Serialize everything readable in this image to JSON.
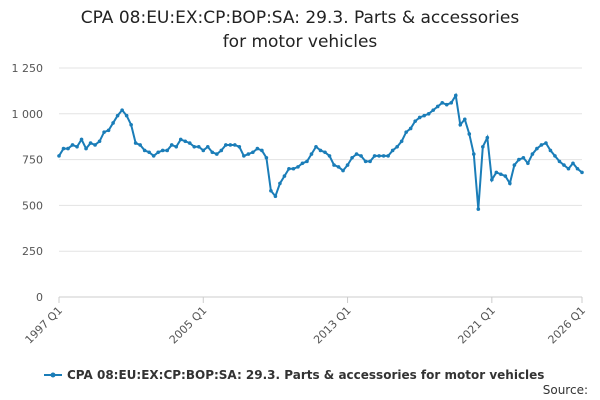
{
  "chart_data": {
    "type": "line",
    "title": "CPA 08:EU:EX:CP:BOP:SA: 29.3. Parts & accessories for motor vehicles",
    "source": "Source:",
    "categories": [
      "1997 Q1",
      null,
      null,
      null,
      null,
      null,
      null,
      null,
      null,
      null,
      null,
      null,
      null,
      null,
      null,
      null,
      null,
      null,
      null,
      null,
      null,
      null,
      null,
      null,
      null,
      null,
      null,
      null,
      null,
      null,
      null,
      null,
      "2005 Q1",
      null,
      null,
      null,
      null,
      null,
      null,
      null,
      null,
      null,
      null,
      null,
      null,
      null,
      null,
      null,
      null,
      null,
      null,
      null,
      null,
      null,
      null,
      null,
      null,
      null,
      null,
      null,
      null,
      null,
      null,
      null,
      "2013 Q1",
      null,
      null,
      null,
      null,
      null,
      null,
      null,
      null,
      null,
      null,
      null,
      null,
      null,
      null,
      null,
      null,
      null,
      null,
      null,
      null,
      null,
      null,
      null,
      null,
      null,
      null,
      null,
      null,
      null,
      null,
      null,
      "2021 Q1",
      null,
      null,
      null,
      null,
      null,
      null,
      null,
      null,
      null,
      null,
      null,
      null,
      null,
      null,
      null,
      null,
      null,
      null,
      null,
      "2026 Q1"
    ],
    "series": [
      {
        "name": "CPA 08:EU:EX:CP:BOP:SA: 29.3. Parts & accessories for motor vehicles",
        "color": "#1a7db8",
        "values": [
          770,
          810,
          810,
          830,
          820,
          860,
          810,
          840,
          830,
          850,
          900,
          910,
          950,
          990,
          1020,
          990,
          940,
          840,
          830,
          800,
          790,
          770,
          790,
          800,
          800,
          830,
          820,
          860,
          850,
          840,
          820,
          820,
          800,
          820,
          790,
          780,
          800,
          830,
          830,
          830,
          820,
          770,
          780,
          790,
          810,
          800,
          760,
          580,
          550,
          620,
          660,
          700,
          700,
          710,
          730,
          740,
          780,
          820,
          800,
          790,
          770,
          720,
          710,
          690,
          720,
          760,
          780,
          770,
          740,
          740,
          770,
          770,
          770,
          770,
          800,
          820,
          850,
          900,
          920,
          960,
          980,
          990,
          1000,
          1020,
          1040,
          1060,
          1050,
          1060,
          1100,
          940,
          970,
          890,
          780,
          480,
          820,
          870,
          640,
          680,
          670,
          660,
          620,
          720,
          750,
          760,
          730,
          780,
          810,
          830,
          840,
          800,
          770,
          740,
          720,
          700,
          730,
          700,
          680
        ]
      }
    ],
    "ylim": [
      0,
      1250
    ],
    "yticks": [
      0,
      250,
      500,
      750,
      {
        "value": 1000,
        "label": "1 000"
      },
      {
        "value": 1250,
        "label": "1 250"
      }
    ],
    "grid": true
  }
}
